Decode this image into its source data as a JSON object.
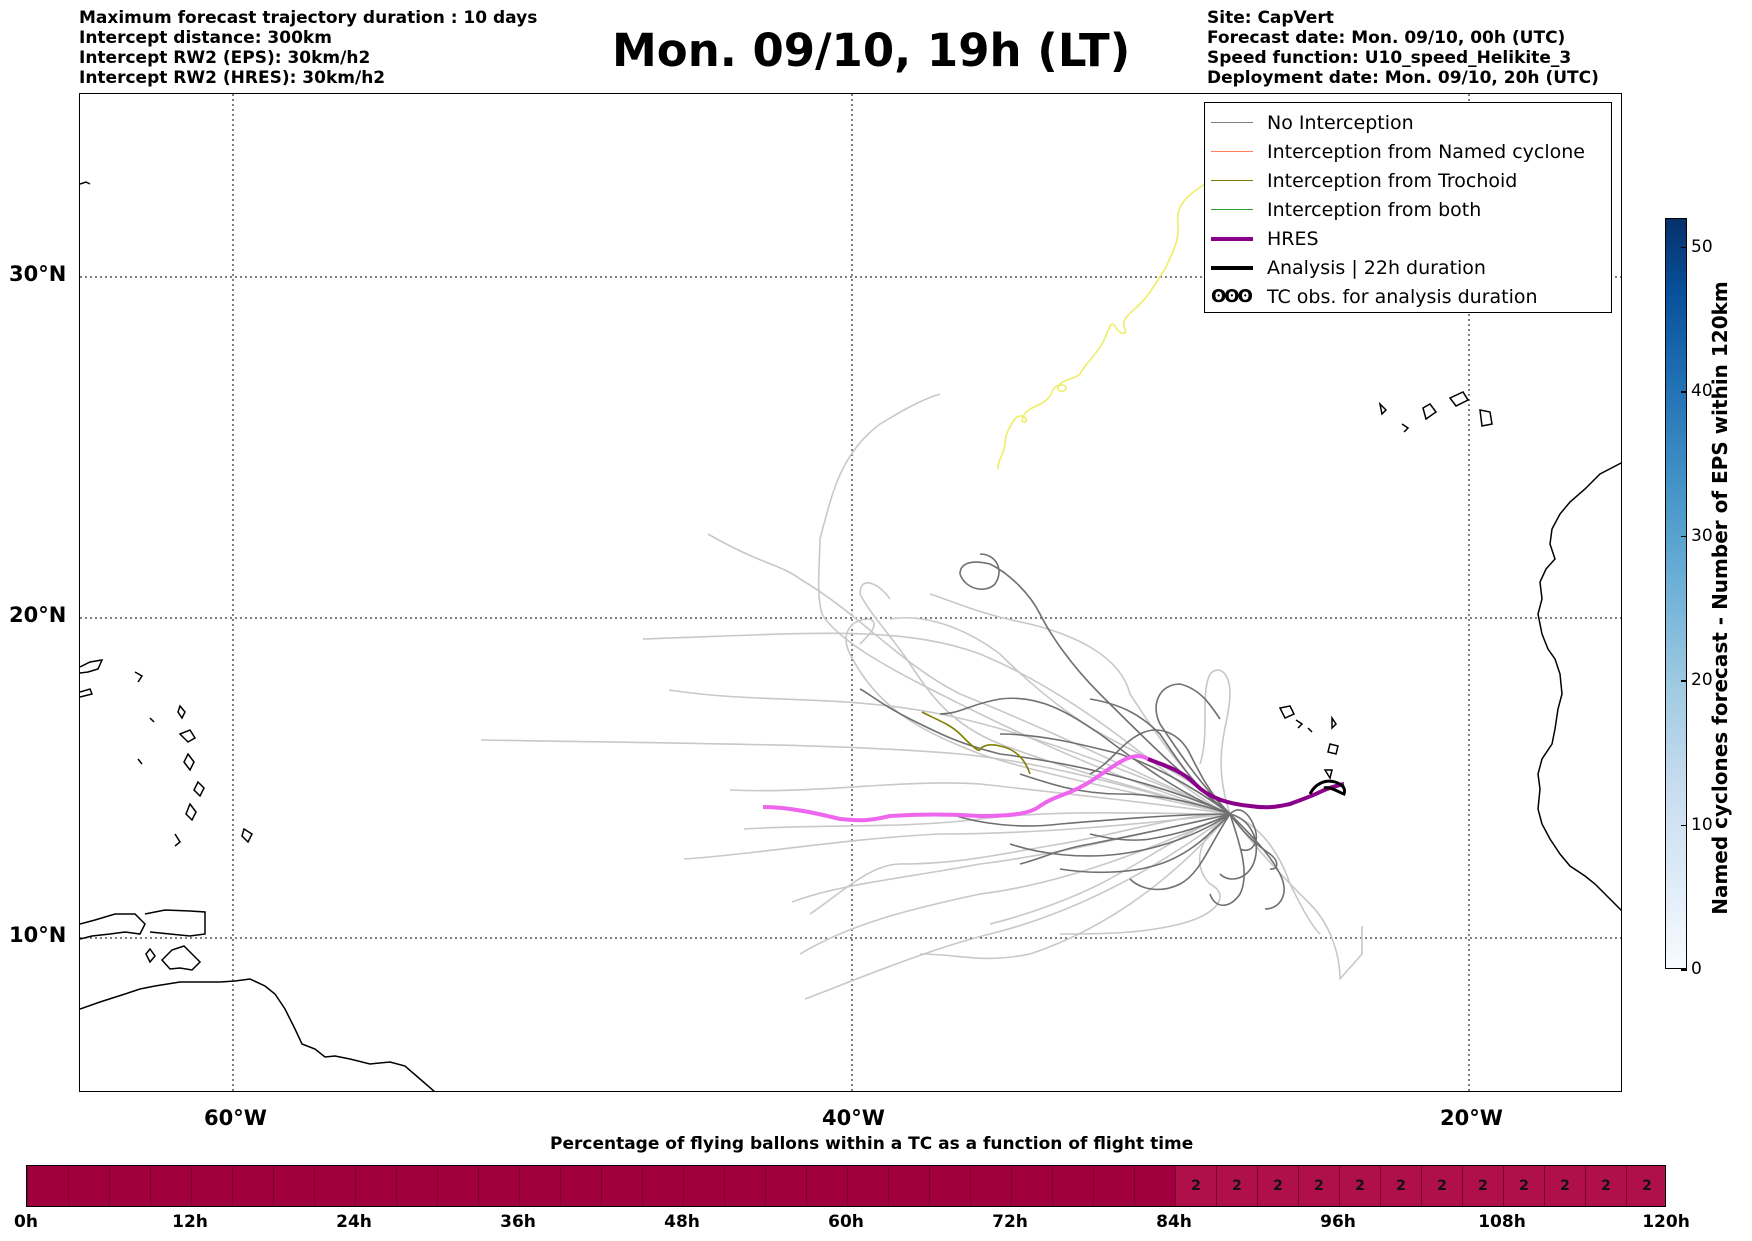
{
  "header_left": [
    "Maximum forecast trajectory duration : 10 days",
    "Intercept distance: 300km",
    "Intercept RW2 (EPS):  30km/h2",
    "Intercept RW2 (HRES): 30km/h2"
  ],
  "title": "Mon. 09/10, 19h (LT)",
  "header_right": [
    "Site: CapVert",
    "Forecast date: Mon. 09/10, 00h (UTC)",
    "Speed function: U10_speed_Helikite_3",
    "Deployment date: Mon. 09/10, 20h (UTC)"
  ],
  "map": {
    "lat_labels": [
      "30°N",
      "20°N",
      "10°N"
    ],
    "lon_labels": [
      "60°W",
      "40°W",
      "20°W"
    ],
    "gridlines": "dotted",
    "colors": {
      "no_interception": "#808080",
      "named_cyclone": "#ff7f50",
      "trochoid": "#808000",
      "both": "#2ca02c",
      "hres": "#8b008b",
      "hres_forecast": "#ee66ee",
      "analysis": "#000000",
      "yellow_track": "#eeee66"
    }
  },
  "legend": {
    "placement": "top-right",
    "items": [
      {
        "label": "No Interception",
        "color": "#808080",
        "style": "thin"
      },
      {
        "label": "Interception from Named cyclone",
        "color": "#ff7f50",
        "style": "thin"
      },
      {
        "label": "Interception from Trochoid",
        "color": "#808000",
        "style": "thin"
      },
      {
        "label": "Interception from both",
        "color": "#2ca02c",
        "style": "thin"
      },
      {
        "label": "HRES",
        "color": "#8b008b",
        "style": "thick"
      },
      {
        "label": "Analysis | 22h duration",
        "color": "#000000",
        "style": "thick"
      },
      {
        "label": "TC obs. for analysis duration",
        "icon": "cyclone-symbols",
        "glyph": "ʘʘʘ"
      }
    ]
  },
  "colorbar": {
    "label": "Named cyclones forecast - Number of EPS within 120km",
    "ticks": [
      "0",
      "10",
      "20",
      "30",
      "40",
      "50"
    ],
    "range": [
      0,
      52
    ],
    "colormap": "Blues"
  },
  "time_bar": {
    "title": "Percentage of flying ballons within a TC as a function of flight time",
    "labels": [
      "0h",
      "12h",
      "24h",
      "36h",
      "48h",
      "60h",
      "72h",
      "84h",
      "96h",
      "108h",
      "120h"
    ],
    "range_hours": [
      0,
      120
    ],
    "step_hours": 3,
    "color_empty": "#a0003d",
    "color_filled": "#b0104a",
    "values": [
      "",
      "",
      "",
      "",
      "",
      "",
      "",
      "",
      "",
      "",
      "",
      "",
      "",
      "",
      "",
      "",
      "",
      "",
      "",
      "",
      "",
      "",
      "",
      "",
      "",
      "",
      "",
      "",
      "2",
      "2",
      "2",
      "2",
      "2",
      "2",
      "2",
      "2",
      "2",
      "2",
      "2",
      "2"
    ]
  }
}
